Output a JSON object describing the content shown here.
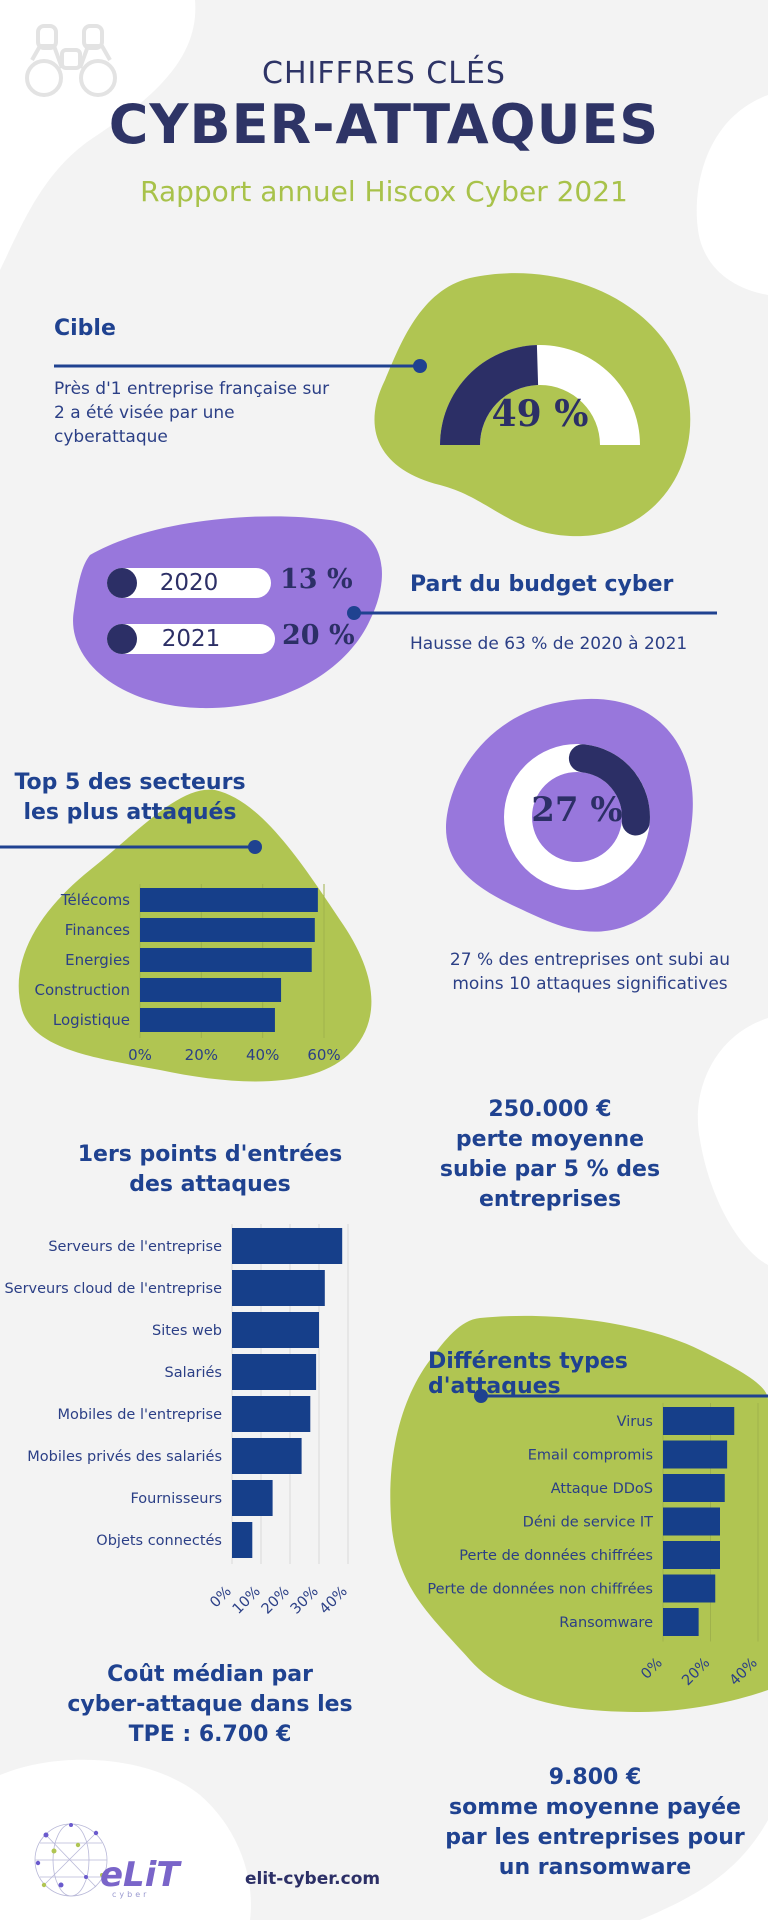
{
  "header": {
    "supertitle": "CHIFFRES CLÉS",
    "title": "CYBER-ATTAQUES",
    "subtitle": "Rapport annuel Hiscox Cyber 2021"
  },
  "cible": {
    "title": "Cible",
    "text_lines": [
      "Près d'1 entreprise française sur",
      "2 a été visée par une",
      "cyberattaque"
    ],
    "value_label": "49 %",
    "value": 49
  },
  "budget": {
    "title": "Part du budget cyber",
    "text": "Hausse de 63 % de 2020 à 2021",
    "rows": [
      {
        "year": "2020",
        "value_label": "13 %"
      },
      {
        "year": "2021",
        "value_label": "20 %"
      }
    ]
  },
  "attaques10": {
    "value_label": "27 %",
    "value": 27,
    "text_lines": [
      "27 % des entreprises ont subi au",
      "moins 10 attaques significatives"
    ]
  },
  "perte": {
    "lines": [
      "250.000 €",
      "perte moyenne",
      "subie par 5 % des",
      "entreprises"
    ]
  },
  "cout": {
    "lines": [
      "Coût médian par",
      "cyber-attaque dans les",
      "TPE : 6.700 €"
    ]
  },
  "ransom": {
    "lines": [
      "9.800 €",
      "somme moyenne payée",
      "par les entreprises pour",
      "un ransomware"
    ]
  },
  "footer": {
    "logo_text": "eLiT",
    "logo_sub": "cyber",
    "website": "elit-cyber.com"
  },
  "colors": {
    "navy": "#2c2f66",
    "blue_bar": "#163f8a",
    "title_blue": "#1f4290",
    "green": "#b0c552",
    "purple": "#9877dc",
    "white": "#ffffff"
  },
  "chart_data": [
    {
      "type": "bar",
      "orientation": "horizontal",
      "title": "Top 5 des secteurs les plus attaqués",
      "title_lines": [
        "Top 5 des secteurs",
        "les plus attaqués"
      ],
      "categories": [
        "Télécoms",
        "Finances",
        "Energies",
        "Construction",
        "Logistique"
      ],
      "values": [
        58,
        57,
        56,
        46,
        44
      ],
      "xlim": [
        0,
        60
      ],
      "xticks": [
        "0%",
        "20%",
        "40%",
        "60%"
      ],
      "xtick_values": [
        0,
        20,
        40,
        60
      ]
    },
    {
      "type": "bar",
      "orientation": "horizontal",
      "title": "1ers points d'entrées des attaques",
      "title_lines": [
        "1ers points d'entrées",
        "des attaques"
      ],
      "categories": [
        "Serveurs de l'entreprise",
        "Serveurs cloud de l'entreprise",
        "Sites web",
        "Salariés",
        "Mobiles de l'entreprise",
        "Mobiles privés des salariés",
        "Fournisseurs",
        "Objets connectés"
      ],
      "values": [
        38,
        32,
        30,
        29,
        27,
        24,
        14,
        7
      ],
      "xlim": [
        0,
        40
      ],
      "xticks": [
        "0%",
        "10%",
        "20%",
        "30%",
        "40%"
      ],
      "xtick_values": [
        0,
        10,
        20,
        30,
        40
      ]
    },
    {
      "type": "bar",
      "orientation": "horizontal",
      "title": "Différents types d'attaques",
      "title_lines": [
        "Différents types d'attaques"
      ],
      "categories": [
        "Virus",
        "Email compromis",
        "Attaque DDoS",
        "Déni de service IT",
        "Perte de données chiffrées",
        "Perte de données non chiffrées",
        "Ransomware"
      ],
      "values": [
        30,
        27,
        26,
        24,
        24,
        22,
        15
      ],
      "xlim": [
        0,
        40
      ],
      "xticks": [
        "0%",
        "20%",
        "40%"
      ],
      "xtick_values": [
        0,
        20,
        40
      ]
    }
  ]
}
